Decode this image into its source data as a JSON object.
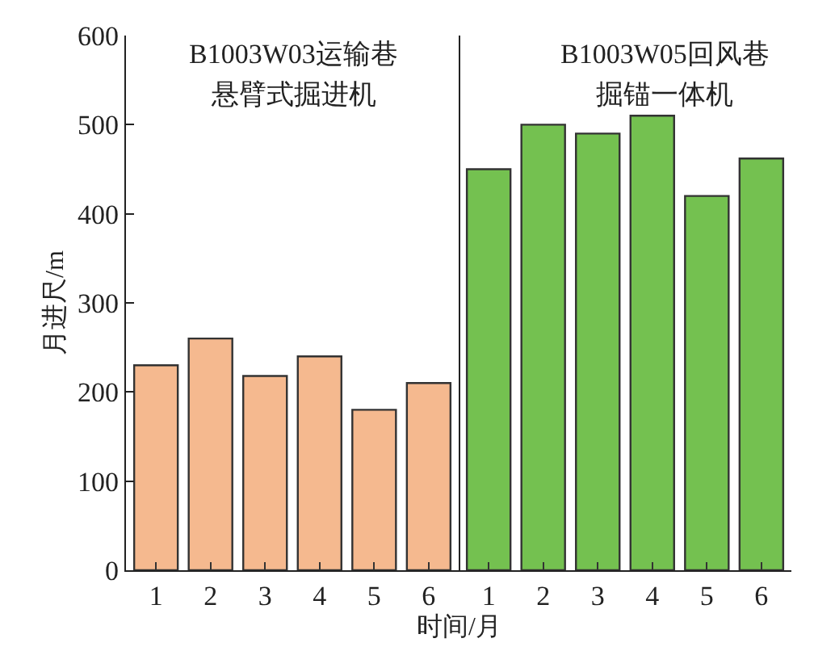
{
  "chart_data": [
    {
      "type": "bar",
      "categories": [
        "1",
        "2",
        "3",
        "4",
        "5",
        "6"
      ],
      "values": [
        230,
        260,
        218,
        240,
        180,
        210
      ],
      "color": "#f5b98f",
      "ylim": [
        0,
        600
      ],
      "yticks": [
        0,
        100,
        200,
        300,
        400,
        500,
        600
      ],
      "ylabel": "月进尺/m",
      "xlabel": "时间/月",
      "annotations": [
        "B1003W03运输巷",
        "悬臂式掘进机"
      ],
      "grid": false
    },
    {
      "type": "bar",
      "categories": [
        "1",
        "2",
        "3",
        "4",
        "5",
        "6"
      ],
      "values": [
        450,
        500,
        490,
        510,
        420,
        462
      ],
      "color": "#74c150",
      "ylim": [
        0,
        600
      ],
      "yticks": [
        0,
        100,
        200,
        300,
        400,
        500,
        600
      ],
      "tick_labels": "x",
      "annotations": [
        "B1003W05回风巷",
        "掘锚一体机"
      ],
      "grid": false
    }
  ]
}
